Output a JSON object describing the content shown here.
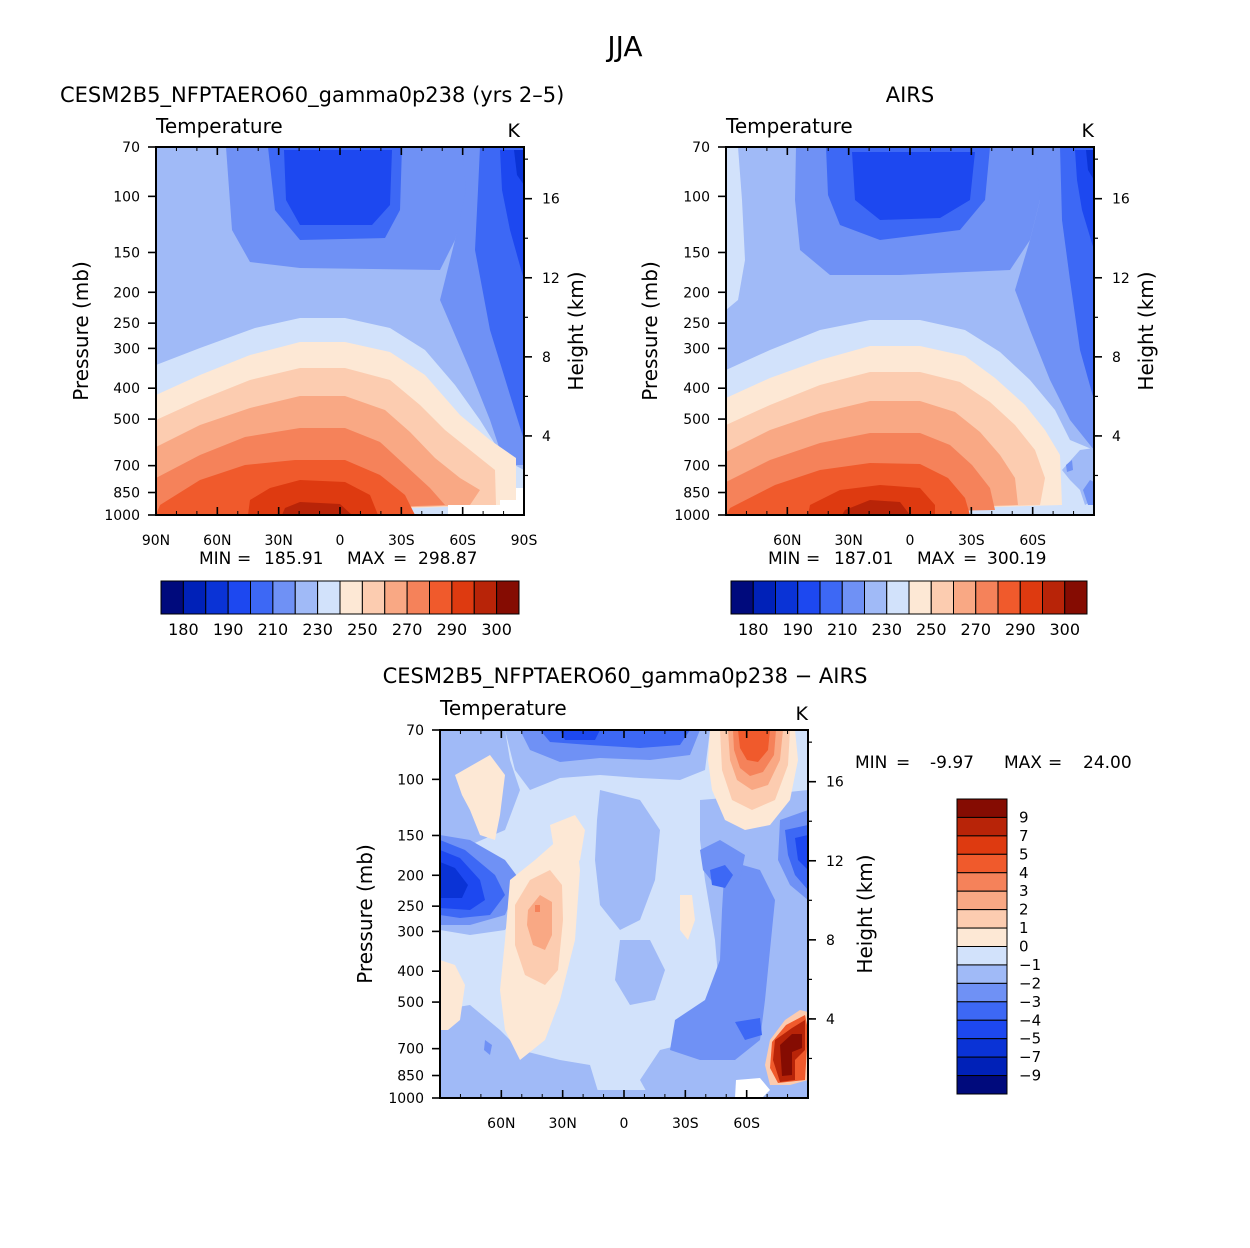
{
  "figure": {
    "title": "JJA"
  },
  "colors": {
    "abs_palette": [
      "#000a7c",
      "#0021b8",
      "#0a33d6",
      "#1d48f0",
      "#3d68f5",
      "#6f91f5",
      "#a0baf7",
      "#d2e2fb",
      "#fde8d5",
      "#fcccb0",
      "#f9a884",
      "#f5825a",
      "#f05a2c",
      "#de3a10",
      "#b82408",
      "#850c02"
    ],
    "diff_palette": [
      "#000a7c",
      "#0021b8",
      "#0a33d6",
      "#1d48f0",
      "#3d68f5",
      "#6f91f5",
      "#a0baf7",
      "#d2e2fb",
      "#fde8d5",
      "#fcccb0",
      "#f9a884",
      "#f5825a",
      "#f05a2c",
      "#de3a10",
      "#b82408",
      "#850c02"
    ]
  },
  "chart_data": [
    {
      "type": "heatmap",
      "id": "model",
      "title": "CESM2B5_NFPTAERO60_gamma0p238 (yrs 2–5)",
      "subtitle_left": "Temperature",
      "units": "K",
      "xlabel": "",
      "ylabel": "Pressure (mb)",
      "y2label": "Height (km)",
      "x_ticks": [
        "90N",
        "60N",
        "30N",
        "0",
        "30S",
        "60S",
        "90S"
      ],
      "y_ticks": [
        "70",
        "100",
        "150",
        "200",
        "250",
        "300",
        "400",
        "500",
        "700",
        "850",
        "1000"
      ],
      "y2_ticks": [
        "4",
        "8",
        "12",
        "16"
      ],
      "stats": {
        "min_label": "MIN",
        "min": "185.91",
        "max_label": "MAX",
        "max": "298.87"
      },
      "colorbar_levels": [
        175,
        180,
        185,
        190,
        200,
        210,
        220,
        230,
        240,
        250,
        260,
        270,
        280,
        290,
        295,
        300
      ],
      "colorbar_labels": [
        "180",
        "190",
        "210",
        "230",
        "250",
        "270",
        "290",
        "300"
      ]
    },
    {
      "type": "heatmap",
      "id": "obs",
      "title": "AIRS",
      "subtitle_left": "Temperature",
      "units": "K",
      "xlabel": "",
      "ylabel": "Pressure (mb)",
      "y2label": "Height (km)",
      "x_ticks": [
        "60N",
        "30N",
        "0",
        "30S",
        "60S"
      ],
      "y_ticks": [
        "70",
        "100",
        "150",
        "200",
        "250",
        "300",
        "400",
        "500",
        "700",
        "850",
        "1000"
      ],
      "y2_ticks": [
        "4",
        "8",
        "12",
        "16"
      ],
      "stats": {
        "min_label": "MIN",
        "min": "187.01",
        "max_label": "MAX",
        "max": "300.19"
      },
      "colorbar_levels": [
        175,
        180,
        185,
        190,
        200,
        210,
        220,
        230,
        240,
        250,
        260,
        270,
        280,
        290,
        295,
        300
      ],
      "colorbar_labels": [
        "180",
        "190",
        "210",
        "230",
        "250",
        "270",
        "290",
        "300"
      ]
    },
    {
      "type": "heatmap",
      "id": "diff",
      "title": "CESM2B5_NFPTAERO60_gamma0p238 − AIRS",
      "subtitle_left": "Temperature",
      "units": "K",
      "xlabel": "",
      "ylabel": "Pressure (mb)",
      "y2label": "Height (km)",
      "x_ticks": [
        "60N",
        "30N",
        "0",
        "30S",
        "60S"
      ],
      "y_ticks": [
        "70",
        "100",
        "150",
        "200",
        "250",
        "300",
        "400",
        "500",
        "700",
        "850",
        "1000"
      ],
      "y2_ticks": [
        "4",
        "8",
        "12",
        "16"
      ],
      "stats": {
        "min_label": "MIN",
        "min": "-9.97",
        "max_label": "MAX",
        "max": "24.00"
      },
      "colorbar_levels": [
        -9,
        -7,
        -5,
        -4,
        -3,
        -2,
        -1,
        0,
        1,
        2,
        3,
        4,
        5,
        7,
        9
      ],
      "colorbar_labels": [
        "9",
        "7",
        "5",
        "4",
        "3",
        "2",
        "1",
        "0",
        "−1",
        "−2",
        "−3",
        "−4",
        "−5",
        "−7",
        "−9"
      ]
    }
  ]
}
